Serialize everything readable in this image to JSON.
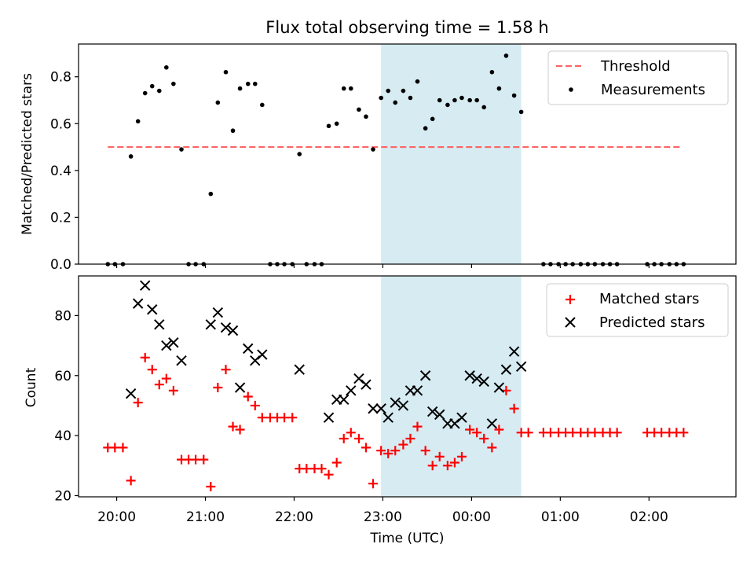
{
  "chart_data": {
    "title": "Flux total observing time = 1.58 h",
    "xlabel": "Time (UTC)",
    "x_ticks": [
      "20:00",
      "21:00",
      "22:00",
      "23:00",
      "00:00",
      "01:00",
      "02:00"
    ],
    "x_unit": "hours since 20:00 UTC",
    "x_range": [
      -0.43,
      6.98
    ],
    "shaded_region": {
      "from": 2.98,
      "to": 4.56,
      "color": "#add8e6"
    },
    "top": {
      "type": "scatter",
      "ylabel": "Matched/Predicted stars",
      "ylim": [
        0.0,
        0.94
      ],
      "y_ticks": [
        0.0,
        0.2,
        0.4,
        0.6,
        0.8
      ],
      "threshold": {
        "name": "Threshold",
        "value": 0.5,
        "from": -0.1,
        "to": 6.35,
        "color": "#ff6464"
      },
      "measurements": {
        "name": "Measurements",
        "color": "#000000",
        "points": [
          [
            -0.1,
            0.0
          ],
          [
            -0.02,
            0.0
          ],
          [
            0.07,
            0.0
          ],
          [
            0.16,
            0.46
          ],
          [
            0.24,
            0.61
          ],
          [
            0.32,
            0.73
          ],
          [
            0.4,
            0.76
          ],
          [
            0.48,
            0.74
          ],
          [
            0.56,
            0.84
          ],
          [
            0.64,
            0.77
          ],
          [
            0.73,
            0.49
          ],
          [
            0.81,
            0.0
          ],
          [
            0.89,
            0.0
          ],
          [
            0.98,
            0.0
          ],
          [
            1.06,
            0.3
          ],
          [
            1.14,
            0.69
          ],
          [
            1.23,
            0.82
          ],
          [
            1.31,
            0.57
          ],
          [
            1.39,
            0.75
          ],
          [
            1.48,
            0.77
          ],
          [
            1.56,
            0.77
          ],
          [
            1.64,
            0.68
          ],
          [
            1.73,
            0.0
          ],
          [
            1.81,
            0.0
          ],
          [
            1.89,
            0.0
          ],
          [
            1.98,
            0.0
          ],
          [
            2.06,
            0.47
          ],
          [
            2.14,
            0.0
          ],
          [
            2.23,
            0.0
          ],
          [
            2.31,
            0.0
          ],
          [
            2.39,
            0.59
          ],
          [
            2.48,
            0.6
          ],
          [
            2.56,
            0.75
          ],
          [
            2.64,
            0.75
          ],
          [
            2.73,
            0.66
          ],
          [
            2.81,
            0.63
          ],
          [
            2.89,
            0.49
          ],
          [
            2.98,
            0.71
          ],
          [
            3.06,
            0.74
          ],
          [
            3.14,
            0.69
          ],
          [
            3.23,
            0.74
          ],
          [
            3.31,
            0.71
          ],
          [
            3.39,
            0.78
          ],
          [
            3.48,
            0.58
          ],
          [
            3.56,
            0.62
          ],
          [
            3.64,
            0.7
          ],
          [
            3.73,
            0.68
          ],
          [
            3.81,
            0.7
          ],
          [
            3.89,
            0.71
          ],
          [
            3.98,
            0.7
          ],
          [
            4.06,
            0.7
          ],
          [
            4.14,
            0.67
          ],
          [
            4.23,
            0.82
          ],
          [
            4.31,
            0.75
          ],
          [
            4.39,
            0.89
          ],
          [
            4.48,
            0.72
          ],
          [
            4.56,
            0.65
          ],
          [
            4.81,
            0.0
          ],
          [
            4.89,
            0.0
          ],
          [
            4.98,
            0.0
          ],
          [
            5.06,
            0.0
          ],
          [
            5.14,
            0.0
          ],
          [
            5.23,
            0.0
          ],
          [
            5.31,
            0.0
          ],
          [
            5.39,
            0.0
          ],
          [
            5.48,
            0.0
          ],
          [
            5.56,
            0.0
          ],
          [
            5.64,
            0.0
          ],
          [
            5.98,
            0.0
          ],
          [
            6.06,
            0.0
          ],
          [
            6.14,
            0.0
          ],
          [
            6.23,
            0.0
          ],
          [
            6.31,
            0.0
          ],
          [
            6.39,
            0.0
          ]
        ]
      }
    },
    "bottom": {
      "type": "scatter",
      "ylabel": "Count",
      "ylim": [
        19.6,
        93.2
      ],
      "y_ticks": [
        20,
        40,
        60,
        80
      ],
      "matched": {
        "name": "Matched stars",
        "color": "#ff0000",
        "points": [
          [
            -0.1,
            36
          ],
          [
            -0.02,
            36
          ],
          [
            0.07,
            36
          ],
          [
            0.16,
            25
          ],
          [
            0.24,
            51
          ],
          [
            0.32,
            66
          ],
          [
            0.4,
            62
          ],
          [
            0.48,
            57
          ],
          [
            0.56,
            59
          ],
          [
            0.64,
            55
          ],
          [
            0.73,
            32
          ],
          [
            0.81,
            32
          ],
          [
            0.89,
            32
          ],
          [
            0.98,
            32
          ],
          [
            1.06,
            23
          ],
          [
            1.14,
            56
          ],
          [
            1.23,
            62
          ],
          [
            1.31,
            43
          ],
          [
            1.39,
            42
          ],
          [
            1.48,
            53
          ],
          [
            1.56,
            50
          ],
          [
            1.64,
            46
          ],
          [
            1.73,
            46
          ],
          [
            1.81,
            46
          ],
          [
            1.89,
            46
          ],
          [
            1.98,
            46
          ],
          [
            2.06,
            29
          ],
          [
            2.14,
            29
          ],
          [
            2.23,
            29
          ],
          [
            2.31,
            29
          ],
          [
            2.39,
            27
          ],
          [
            2.48,
            31
          ],
          [
            2.56,
            39
          ],
          [
            2.64,
            41
          ],
          [
            2.73,
            39
          ],
          [
            2.81,
            36
          ],
          [
            2.89,
            24
          ],
          [
            2.98,
            35
          ],
          [
            3.06,
            34
          ],
          [
            3.14,
            35
          ],
          [
            3.23,
            37
          ],
          [
            3.31,
            39
          ],
          [
            3.39,
            43
          ],
          [
            3.48,
            35
          ],
          [
            3.56,
            30
          ],
          [
            3.64,
            33
          ],
          [
            3.73,
            30
          ],
          [
            3.81,
            31
          ],
          [
            3.89,
            33
          ],
          [
            3.98,
            42
          ],
          [
            4.06,
            41
          ],
          [
            4.14,
            39
          ],
          [
            4.23,
            36
          ],
          [
            4.31,
            42
          ],
          [
            4.39,
            55
          ],
          [
            4.48,
            49
          ],
          [
            4.56,
            41
          ],
          [
            4.64,
            41
          ],
          [
            4.81,
            41
          ],
          [
            4.89,
            41
          ],
          [
            4.98,
            41
          ],
          [
            5.06,
            41
          ],
          [
            5.14,
            41
          ],
          [
            5.23,
            41
          ],
          [
            5.31,
            41
          ],
          [
            5.39,
            41
          ],
          [
            5.48,
            41
          ],
          [
            5.56,
            41
          ],
          [
            5.64,
            41
          ],
          [
            5.98,
            41
          ],
          [
            6.06,
            41
          ],
          [
            6.14,
            41
          ],
          [
            6.23,
            41
          ],
          [
            6.31,
            41
          ],
          [
            6.39,
            41
          ]
        ]
      },
      "predicted": {
        "name": "Predicted stars",
        "color": "#000000",
        "points": [
          [
            0.16,
            54
          ],
          [
            0.24,
            84
          ],
          [
            0.32,
            90
          ],
          [
            0.4,
            82
          ],
          [
            0.48,
            77
          ],
          [
            0.56,
            70
          ],
          [
            0.64,
            71
          ],
          [
            0.73,
            65
          ],
          [
            1.06,
            77
          ],
          [
            1.14,
            81
          ],
          [
            1.23,
            76
          ],
          [
            1.31,
            75
          ],
          [
            1.39,
            56
          ],
          [
            1.48,
            69
          ],
          [
            1.56,
            65
          ],
          [
            1.64,
            67
          ],
          [
            2.06,
            62
          ],
          [
            2.39,
            46
          ],
          [
            2.48,
            52
          ],
          [
            2.56,
            52
          ],
          [
            2.64,
            55
          ],
          [
            2.73,
            59
          ],
          [
            2.81,
            57
          ],
          [
            2.89,
            49
          ],
          [
            2.98,
            49
          ],
          [
            3.06,
            46
          ],
          [
            3.14,
            51
          ],
          [
            3.23,
            50
          ],
          [
            3.31,
            55
          ],
          [
            3.39,
            55
          ],
          [
            3.48,
            60
          ],
          [
            3.56,
            48
          ],
          [
            3.64,
            47
          ],
          [
            3.73,
            44
          ],
          [
            3.81,
            44
          ],
          [
            3.89,
            46
          ],
          [
            3.98,
            60
          ],
          [
            4.06,
            59
          ],
          [
            4.14,
            58
          ],
          [
            4.23,
            44
          ],
          [
            4.31,
            56
          ],
          [
            4.39,
            62
          ],
          [
            4.48,
            68
          ],
          [
            4.56,
            63
          ]
        ]
      }
    }
  }
}
